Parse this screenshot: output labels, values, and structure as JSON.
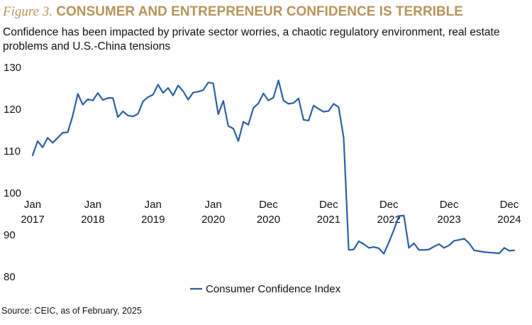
{
  "figure": {
    "label": "Figure 3.",
    "title": "CONSUMER AND ENTREPRENEUR CONFIDENCE IS TERRIBLE",
    "subtitle": "Confidence has been impacted by private sector worries, a chaotic regulatory environment, real estate problems and U.S.-China tensions",
    "source": "Source: CEIC, as of February, 2025"
  },
  "colors": {
    "accent": "#b8955a",
    "line": "#2e5fa6"
  },
  "chart_data": {
    "type": "line",
    "title": "",
    "xlabel": "",
    "ylabel": "",
    "ylim": [
      80,
      130
    ],
    "yticks": [
      130,
      120,
      110,
      100,
      90,
      80
    ],
    "grid": false,
    "legend_position": "bottom-center",
    "x_tick_labels": [
      {
        "month": "Jan",
        "year": "2017",
        "index": 0
      },
      {
        "month": "Jan",
        "year": "2018",
        "index": 12
      },
      {
        "month": "Jan",
        "year": "2019",
        "index": 24
      },
      {
        "month": "Jan",
        "year": "2020",
        "index": 36
      },
      {
        "month": "Dec",
        "year": "2020",
        "index": 47
      },
      {
        "month": "Dec",
        "year": "2021",
        "index": 59
      },
      {
        "month": "Dec",
        "year": "2022",
        "index": 71
      },
      {
        "month": "Dec",
        "year": "2023",
        "index": 83
      },
      {
        "month": "Dec",
        "year": "2024",
        "index": 95
      }
    ],
    "series": [
      {
        "name": "Consumer Confidence Index",
        "color": "#2e5fa6",
        "values": [
          109,
          112.4,
          110.9,
          113.2,
          112.0,
          113.2,
          114.4,
          114.5,
          118.5,
          123.7,
          121.1,
          122.4,
          122.1,
          123.9,
          122.2,
          122.7,
          122.7,
          118.1,
          119.5,
          118.5,
          118.3,
          118.9,
          121.9,
          122.9,
          123.5,
          125.9,
          123.9,
          125.1,
          123.3,
          125.7,
          124.3,
          122.3,
          124.0,
          124.2,
          124.6,
          126.4,
          126.2,
          118.8,
          122.0,
          116.0,
          115.4,
          112.4,
          117.0,
          116.3,
          120.3,
          121.4,
          123.8,
          122.1,
          122.8,
          126.9,
          122.1,
          121.3,
          121.5,
          122.6,
          117.5,
          117.3,
          120.9,
          120.1,
          119.4,
          119.6,
          121.3,
          120.5,
          113.2,
          86.4,
          86.5,
          88.5,
          87.8,
          86.9,
          87.1,
          86.8,
          85.5,
          88.2,
          91.2,
          94.5,
          94.6,
          86.9,
          88.0,
          86.4,
          86.4,
          86.5,
          87.2,
          87.8,
          86.9,
          87.5,
          88.6,
          88.8,
          89.1,
          88.0,
          86.3,
          86.1,
          85.9,
          85.8,
          85.7,
          85.6,
          86.9,
          86.2,
          86.3
        ]
      }
    ]
  }
}
